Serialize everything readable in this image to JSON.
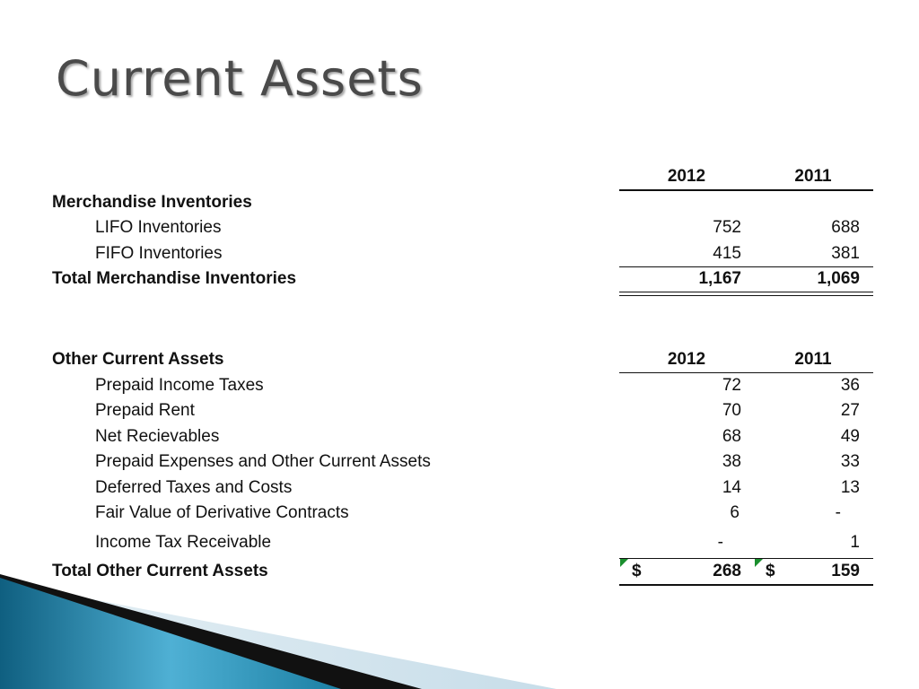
{
  "title": "Current Assets",
  "inventories": {
    "header_2012": "2012",
    "header_2011": "2011",
    "section_label": "Merchandise Inventories",
    "rows": [
      {
        "label": "LIFO Inventories",
        "v2012": "752",
        "v2011": "688"
      },
      {
        "label": "FIFO Inventories",
        "v2012": "415",
        "v2011": "381"
      }
    ],
    "total": {
      "label": "Total Merchandise Inventories",
      "v2012": "1,167",
      "v2011": "1,069"
    }
  },
  "other": {
    "section_label": "Other Current Assets",
    "header_2012": "2012",
    "header_2011": "2011",
    "rows": [
      {
        "label": "Prepaid Income Taxes",
        "v2012": "72",
        "v2011": "36"
      },
      {
        "label": "Prepaid Rent",
        "v2012": "70",
        "v2011": "27"
      },
      {
        "label": "Net Recievables",
        "v2012": "68",
        "v2011": "49"
      },
      {
        "label": "Prepaid Expenses and Other Current Assets",
        "v2012": "38",
        "v2011": "33"
      },
      {
        "label": "Deferred Taxes and Costs",
        "v2012": "14",
        "v2011": "13"
      },
      {
        "label": "Fair Value of Derivative Contracts",
        "v2012": "6",
        "v2011": "-"
      },
      {
        "label": "Income Tax Receivable",
        "v2012": "-",
        "v2011": "1"
      }
    ],
    "total": {
      "label": "Total Other Current Assets",
      "currency": "$",
      "v2012": "268",
      "v2011": "159"
    }
  },
  "colors": {
    "title": "#4a4a4a",
    "cell_marker": "#1a8f2e",
    "swoosh_blue": "#1b7fa3",
    "swoosh_light": "#cfe3ee"
  }
}
